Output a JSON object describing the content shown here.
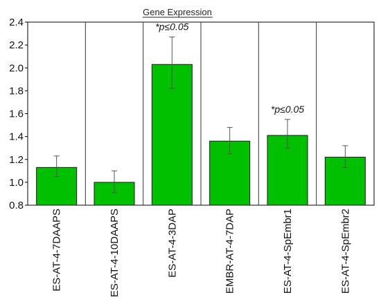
{
  "chart_data": {
    "type": "bar",
    "title": "Gene Expression",
    "xlabel": "",
    "ylabel": "",
    "ylim": [
      0.8,
      2.4
    ],
    "yticks": [
      "0.8",
      "1.0",
      "1.2",
      "1.4",
      "1.6",
      "1.8",
      "2.0",
      "2.2",
      "2.4"
    ],
    "categories": [
      "ES-AT-4-7DAAPS",
      "ES-AT-4-10DAAPS",
      "ES-AT-4-3DAP",
      "EMBR-AT-4-7DAP",
      "ES-AT-4-SpEmbr1",
      "ES-AT-4-SpEmbr2"
    ],
    "values": [
      1.13,
      1.0,
      2.03,
      1.36,
      1.41,
      1.22
    ],
    "error_upper": [
      1.23,
      1.1,
      2.27,
      1.48,
      1.55,
      1.32
    ],
    "error_lower": [
      1.05,
      0.91,
      1.82,
      1.25,
      1.3,
      1.13
    ],
    "annotations": [
      {
        "category_index": 2,
        "text": "*p≤0.05"
      },
      {
        "category_index": 4,
        "text": "*p≤0.05"
      }
    ],
    "bar_color": "#00c000",
    "grid": "vertical separators"
  }
}
